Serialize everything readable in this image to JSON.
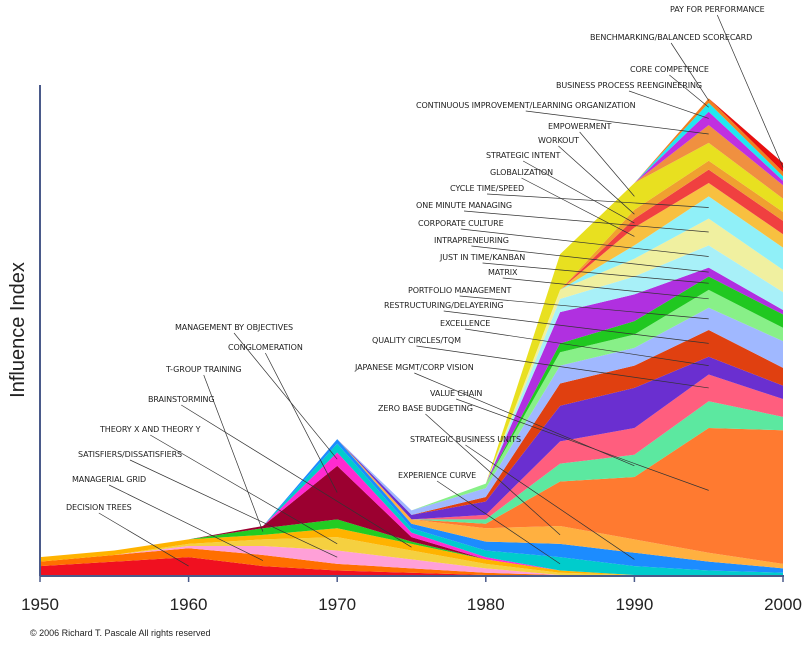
{
  "chart_data": {
    "type": "stacked-area",
    "y_label": "Influence Index",
    "source": "© 2006 Richard T. Pascale All rights reserved",
    "x": [
      1950,
      1955,
      1960,
      1965,
      1970,
      1975,
      1980,
      1985,
      1990,
      1995,
      2000
    ],
    "xlim": [
      1950,
      2000
    ],
    "xticks": [
      1950,
      1960,
      1970,
      1980,
      1990,
      2000
    ],
    "ylim": [
      0,
      110
    ],
    "series": [
      {
        "name": "DECISION TREES",
        "color": "#f01020",
        "values": [
          2,
          3,
          4,
          2,
          1,
          0.5,
          0,
          0,
          0,
          0,
          0
        ]
      },
      {
        "name": "MANAGERIAL GRID",
        "color": "#ff6f00",
        "values": [
          1,
          1.5,
          2,
          2.5,
          1.5,
          1,
          0.5,
          0,
          0,
          0,
          0
        ]
      },
      {
        "name": "SATISFIERS/DISSATISFIERS",
        "color": "#ffa0d8",
        "values": [
          0,
          0,
          0.5,
          2,
          3,
          2,
          1,
          0,
          0,
          0,
          0
        ]
      },
      {
        "name": "THEORY X AND THEORY Y",
        "color": "#f5d040",
        "values": [
          0,
          0,
          0.5,
          1.5,
          3,
          2,
          1,
          0.5,
          0,
          0,
          0
        ]
      },
      {
        "name": "BRAINSTORMING",
        "color": "#ffb300",
        "values": [
          1,
          1,
          1,
          1,
          2,
          1.5,
          1,
          0.5,
          0,
          0,
          0
        ]
      },
      {
        "name": "T-GROUP TRAINING",
        "color": "#22cc22",
        "values": [
          0,
          0,
          0,
          1.5,
          2,
          0.5,
          0,
          0,
          0,
          0,
          0
        ]
      },
      {
        "name": "CONGLOMERATION",
        "color": "#9b0030",
        "values": [
          0,
          0,
          0,
          0.5,
          12,
          1,
          0,
          0,
          0,
          0,
          0
        ]
      },
      {
        "name": "MANAGEMENT BY OBJECTIVES",
        "color": "#ff2ad0",
        "values": [
          0,
          0,
          0,
          0,
          3,
          1,
          0.5,
          0,
          0,
          0,
          0
        ]
      },
      {
        "name": "EXPERIENCE CURVE",
        "color": "#00cccc",
        "values": [
          0,
          0,
          0,
          0,
          2,
          1,
          1.5,
          3,
          2,
          1,
          0.5
        ]
      },
      {
        "name": "STRATEGIC BUSINESS UNITS",
        "color": "#1c8cff",
        "values": [
          0,
          0,
          0,
          0,
          1,
          1,
          2,
          3,
          3,
          2,
          1
        ]
      },
      {
        "name": "ZERO BASE BUDGETING",
        "color": "#ffb040",
        "values": [
          0,
          0,
          0,
          0,
          0,
          1,
          3,
          4,
          3,
          2,
          1
        ]
      },
      {
        "name": "VALUE CHAIN",
        "color": "#ff7a30",
        "values": [
          0,
          0,
          0,
          0,
          0,
          0,
          1,
          10,
          14,
          28,
          30
        ]
      },
      {
        "name": "JAPANESE MGMT/CORP VISION",
        "color": "#5ce8a0",
        "values": [
          0,
          0,
          0,
          0,
          0,
          0,
          1,
          4,
          5,
          6,
          3
        ]
      },
      {
        "name": "QUALITY CIRCLES/TQM",
        "color": "#ff5e7e",
        "values": [
          0,
          0,
          0,
          0,
          0,
          0,
          1,
          5,
          6,
          6,
          4
        ]
      },
      {
        "name": "EXCELLENCE",
        "color": "#6a2fd0",
        "values": [
          0,
          0,
          0,
          0,
          0,
          1,
          3,
          8,
          9,
          4,
          3
        ]
      },
      {
        "name": "RESTRUCTURING/DELAYERING",
        "color": "#e04010",
        "values": [
          0,
          0,
          0,
          0,
          0,
          0,
          1,
          5,
          5,
          6,
          4
        ]
      },
      {
        "name": "PORTFOLIO MANAGEMENT",
        "color": "#a0b8ff",
        "values": [
          0,
          0,
          0,
          0,
          0,
          1,
          2,
          4,
          4,
          5,
          6
        ]
      },
      {
        "name": "MATRIX",
        "color": "#88f088",
        "values": [
          0,
          0,
          0,
          0,
          0,
          0,
          1,
          3,
          3,
          4,
          3
        ]
      },
      {
        "name": "JUST IN TIME/KANBAN",
        "color": "#20c820",
        "values": [
          0,
          0,
          0,
          0,
          0,
          0,
          0,
          2,
          3,
          3,
          3
        ]
      },
      {
        "name": "INTRAPRENEURING",
        "color": "#b030e0",
        "values": [
          0,
          0,
          0,
          0,
          0,
          0,
          0,
          7,
          6,
          2,
          1
        ]
      },
      {
        "name": "CORPORATE CULTURE",
        "color": "#a8f0f8",
        "values": [
          0,
          0,
          0,
          0,
          0,
          0,
          0,
          3,
          4,
          5,
          4
        ]
      },
      {
        "name": "ONE MINUTE MANAGING",
        "color": "#f0f0a0",
        "values": [
          0,
          0,
          0,
          0,
          0,
          0,
          0,
          2,
          4,
          6,
          5
        ]
      },
      {
        "name": "CYCLE TIME/SPEED",
        "color": "#90f0f8",
        "values": [
          0,
          0,
          0,
          0,
          0,
          0,
          0,
          0,
          3,
          5,
          5
        ]
      },
      {
        "name": "GLOBALIZATION",
        "color": "#f8c040",
        "values": [
          0,
          0,
          0,
          0,
          0,
          0,
          0,
          0,
          4,
          3,
          3
        ]
      },
      {
        "name": "STRATEGIC INTENT",
        "color": "#f04040",
        "values": [
          0,
          0,
          0,
          0,
          0,
          0,
          0,
          0,
          2,
          3,
          3
        ]
      },
      {
        "name": "WORKOUT",
        "color": "#f0a030",
        "values": [
          0,
          0,
          0,
          0,
          0,
          0,
          0,
          0,
          2,
          2,
          2
        ]
      },
      {
        "name": "EMPOWERMENT",
        "color": "#e8e020",
        "values": [
          0,
          0,
          0,
          0,
          0,
          0,
          0,
          8,
          6,
          4,
          3
        ]
      },
      {
        "name": "CONTINUOUS IMPROVEMENT/LEARNING ORGANIZATION",
        "color": "#f09040",
        "values": [
          0,
          0,
          0,
          0,
          0,
          0,
          0,
          0,
          0,
          4,
          3
        ]
      },
      {
        "name": "BUSINESS PROCESS REENGINEERING",
        "color": "#c030e0",
        "values": [
          0,
          0,
          0,
          0,
          0,
          0,
          0,
          0,
          0,
          3,
          1
        ]
      },
      {
        "name": "CORE COMPETENCE",
        "color": "#20e8f0",
        "values": [
          0,
          0,
          0,
          0,
          0,
          0,
          0,
          0,
          0,
          2,
          1
        ]
      },
      {
        "name": "BENCHMARKING/BALANCED SCORECARD",
        "color": "#f08020",
        "values": [
          0,
          0,
          0,
          0,
          0,
          0,
          0,
          0,
          0,
          1,
          1
        ]
      },
      {
        "name": "PAY FOR PERFORMANCE",
        "color": "#e81010",
        "values": [
          0,
          0,
          0,
          0,
          0,
          0,
          0,
          0,
          0,
          0,
          2
        ]
      }
    ]
  }
}
